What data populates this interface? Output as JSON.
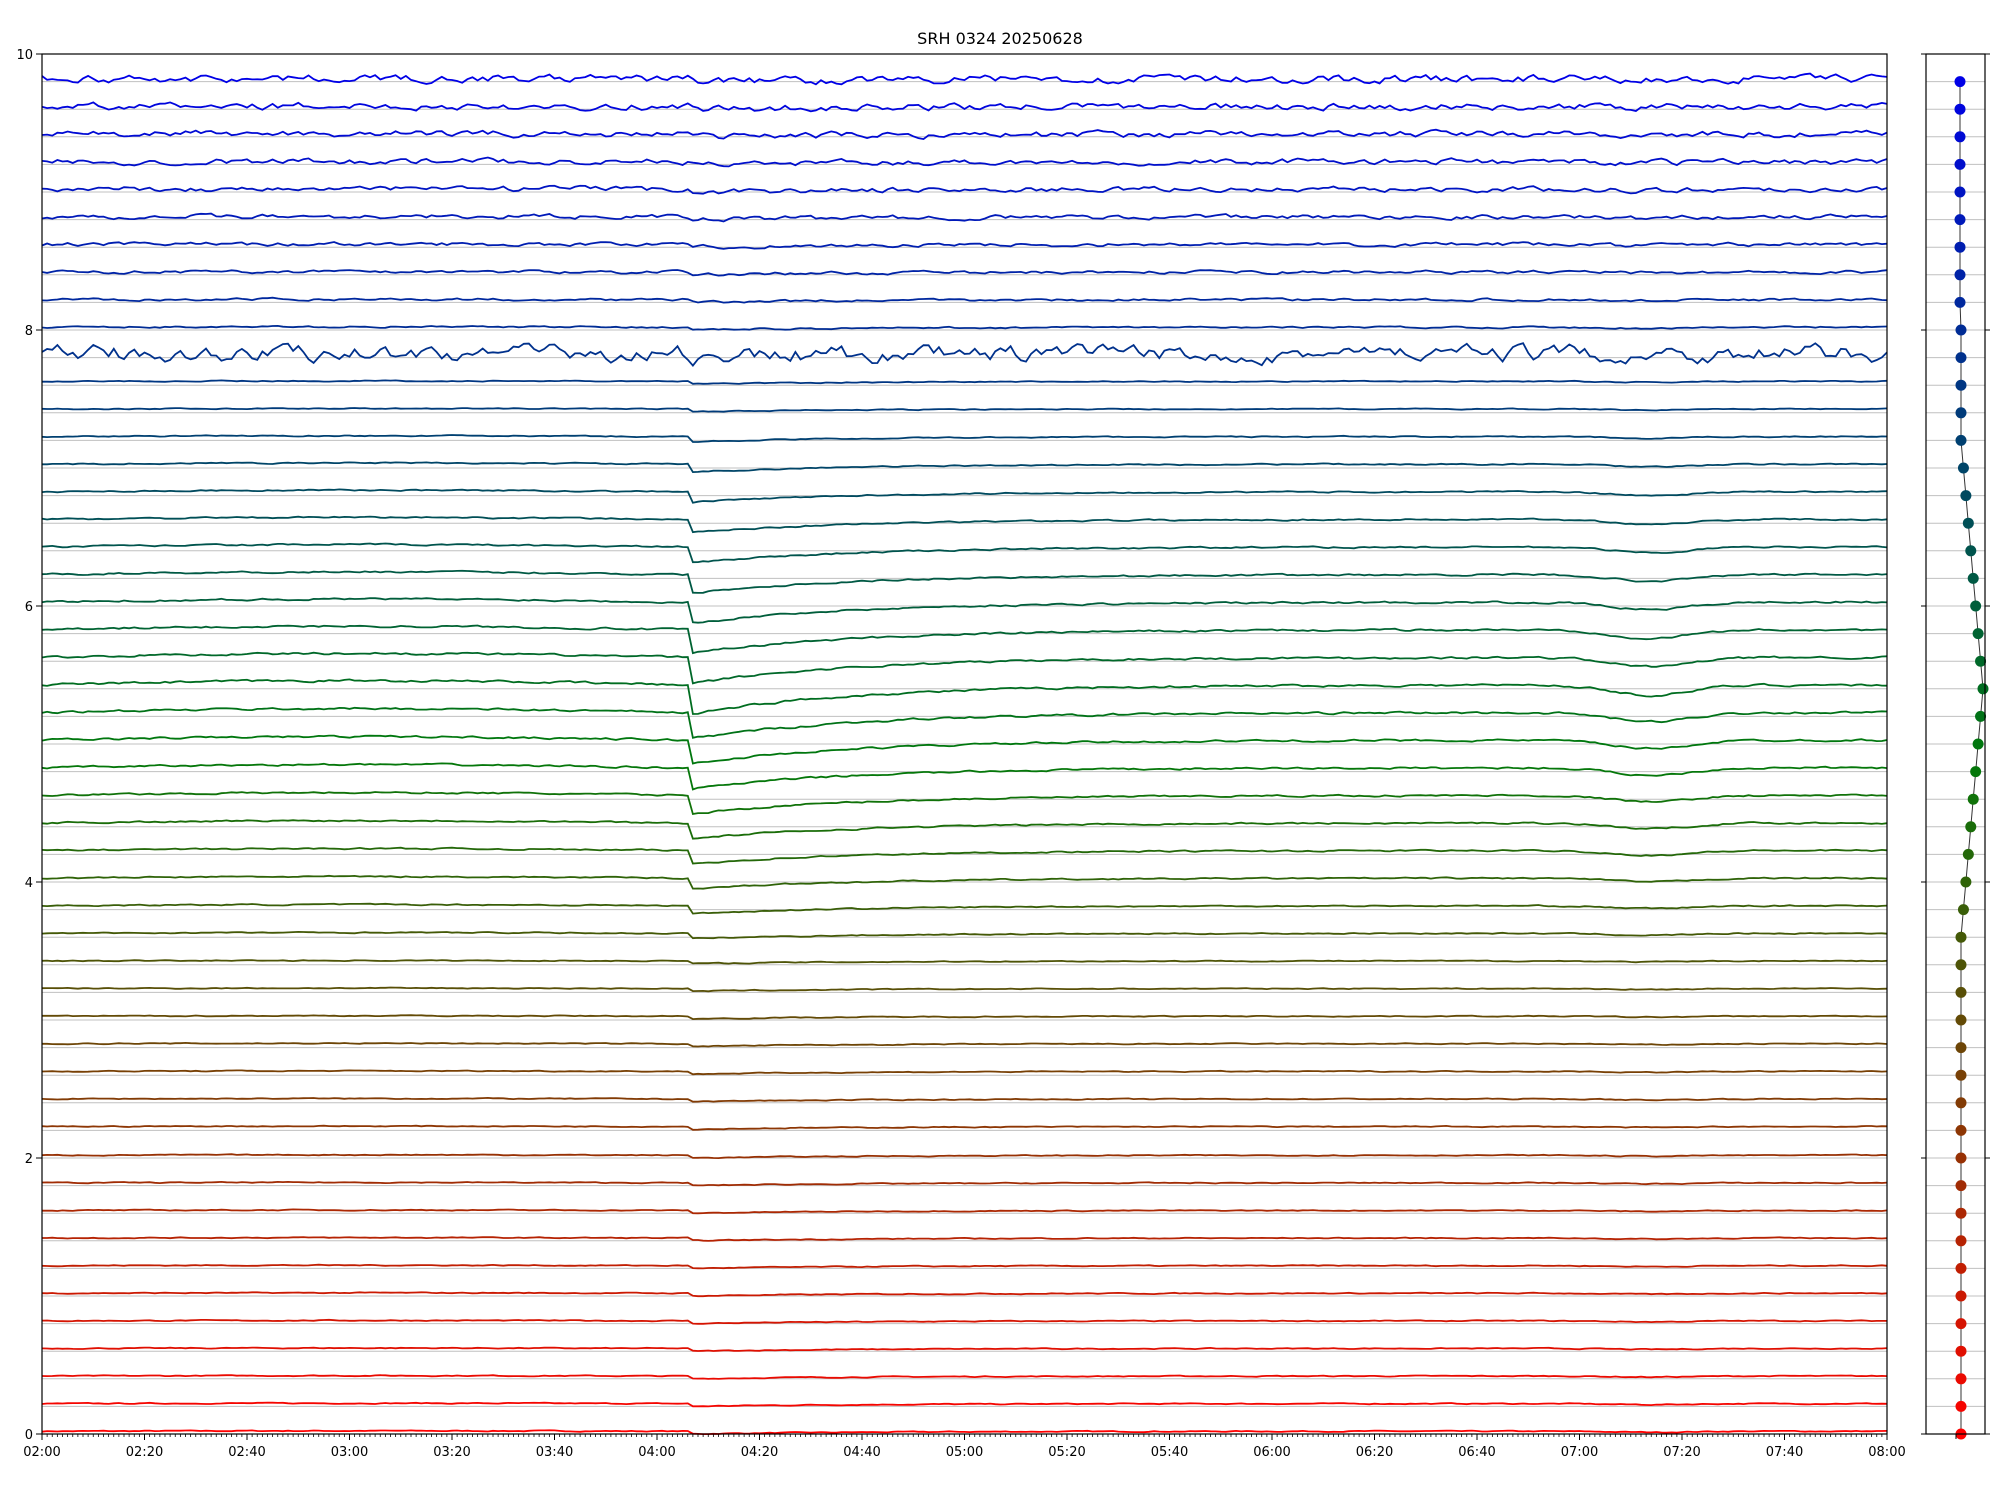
{
  "chart_data": [
    {
      "type": "line",
      "title": "SRH 0324 20250628",
      "xlabel": "",
      "ylabel": "",
      "xlim": [
        "02:00",
        "08:00"
      ],
      "ylim": [
        0,
        10
      ],
      "x_ticks": [
        "02:00",
        "02:20",
        "02:40",
        "03:00",
        "03:20",
        "03:40",
        "04:00",
        "04:20",
        "04:40",
        "05:00",
        "05:20",
        "05:40",
        "06:00",
        "06:20",
        "06:40",
        "07:00",
        "07:20",
        "07:40",
        "08:00"
      ],
      "y_ticks": [
        "0",
        "2",
        "4",
        "6",
        "8",
        "10"
      ],
      "grid": "horizontal at each channel baseline",
      "legend": "none",
      "series_count": 50,
      "baseline_spacing": 0.2,
      "event": {
        "dip_time": "04:10",
        "secondary_dip_time": "07:12"
      },
      "colors": {
        "top": "#0000e6",
        "middle": "#00790a",
        "bottom": "#ff0000"
      }
    },
    {
      "type": "scatter",
      "title": "",
      "ylim": [
        0,
        10
      ],
      "points_count": 50
    }
  ]
}
